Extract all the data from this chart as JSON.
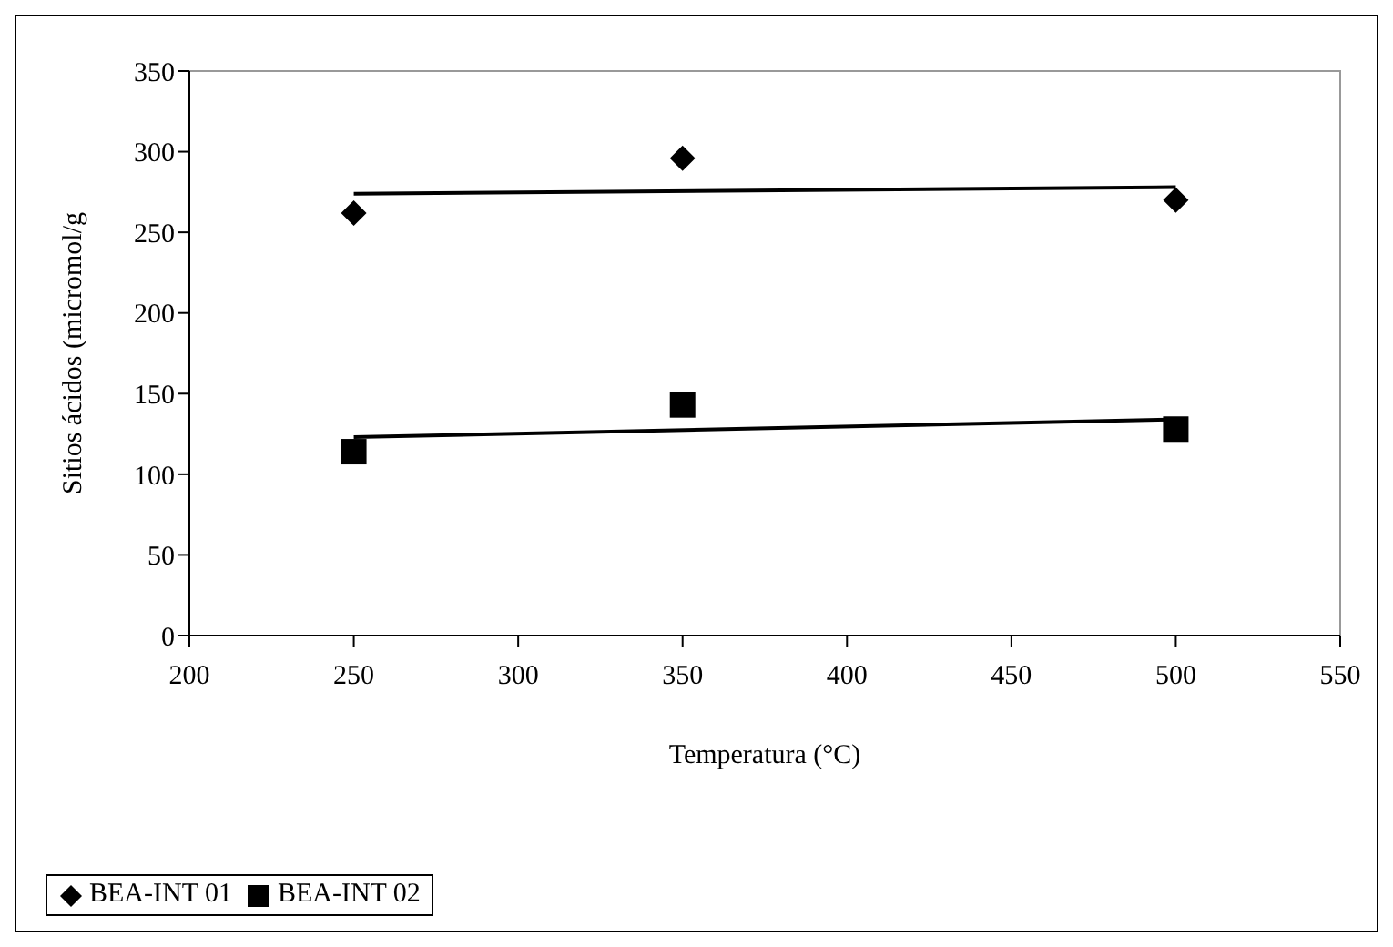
{
  "chart_data": {
    "type": "scatter",
    "xlabel": "Temperatura (°C)",
    "ylabel": "Sitios ácidos (micromol/g",
    "xlim": [
      200,
      550
    ],
    "xticks": [
      200,
      250,
      300,
      350,
      400,
      450,
      500,
      550
    ],
    "ylim": [
      0,
      350
    ],
    "yticks": [
      0,
      50,
      100,
      150,
      200,
      250,
      300,
      350
    ],
    "grid": false,
    "legend": "bottom left",
    "series": [
      {
        "name": "BEA-INT 01",
        "color": "#000000",
        "marker": "diamond",
        "x": [
          250,
          350,
          500
        ],
        "values": [
          262,
          296,
          270
        ]
      },
      {
        "name": "BEA-INT 02",
        "color": "#000000",
        "marker": "square",
        "x": [
          250,
          350,
          500
        ],
        "values": [
          114,
          143,
          128
        ]
      },
      {
        "type": "line",
        "color": "#000000",
        "marker": "none",
        "x": [
          250,
          500
        ],
        "values": [
          274,
          278
        ]
      },
      {
        "type": "line",
        "color": "#000000",
        "marker": "none",
        "x": [
          250,
          500
        ],
        "values": [
          123,
          134
        ]
      }
    ]
  }
}
